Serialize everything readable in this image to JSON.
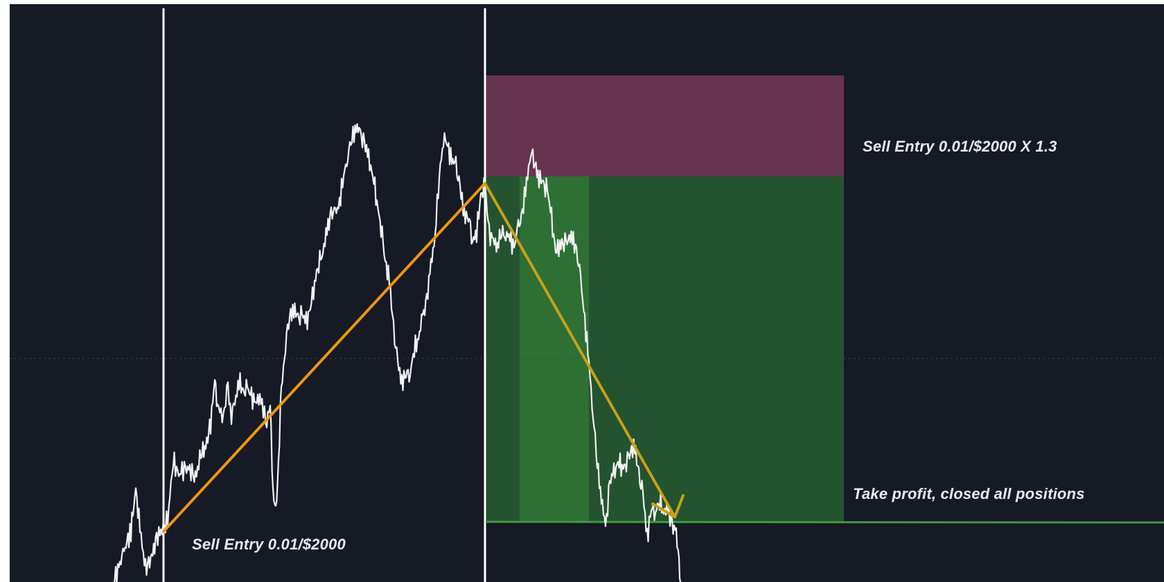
{
  "chart_data": {
    "type": "line",
    "title": "",
    "xlabel": "",
    "ylabel": "",
    "grid": false,
    "legend": "none",
    "colors": {
      "background": "#151a25",
      "price": "#f2f2f2",
      "entry_line": "#ffffff",
      "up_arrow": "#f0960e",
      "down_arrow": "#c9a017",
      "risk_zone": "#67344f",
      "profit_zone": "#24532f",
      "profit_zone_highlight": "#2e6f34",
      "take_profit_line": "#3d9a3f"
    },
    "annotations": {
      "entry_1": "Sell Entry 0.01/$2000",
      "entry_2": "Sell Entry 0.01/$2000 X 1.3",
      "take_profit": "Take profit, closed all positions"
    }
  }
}
